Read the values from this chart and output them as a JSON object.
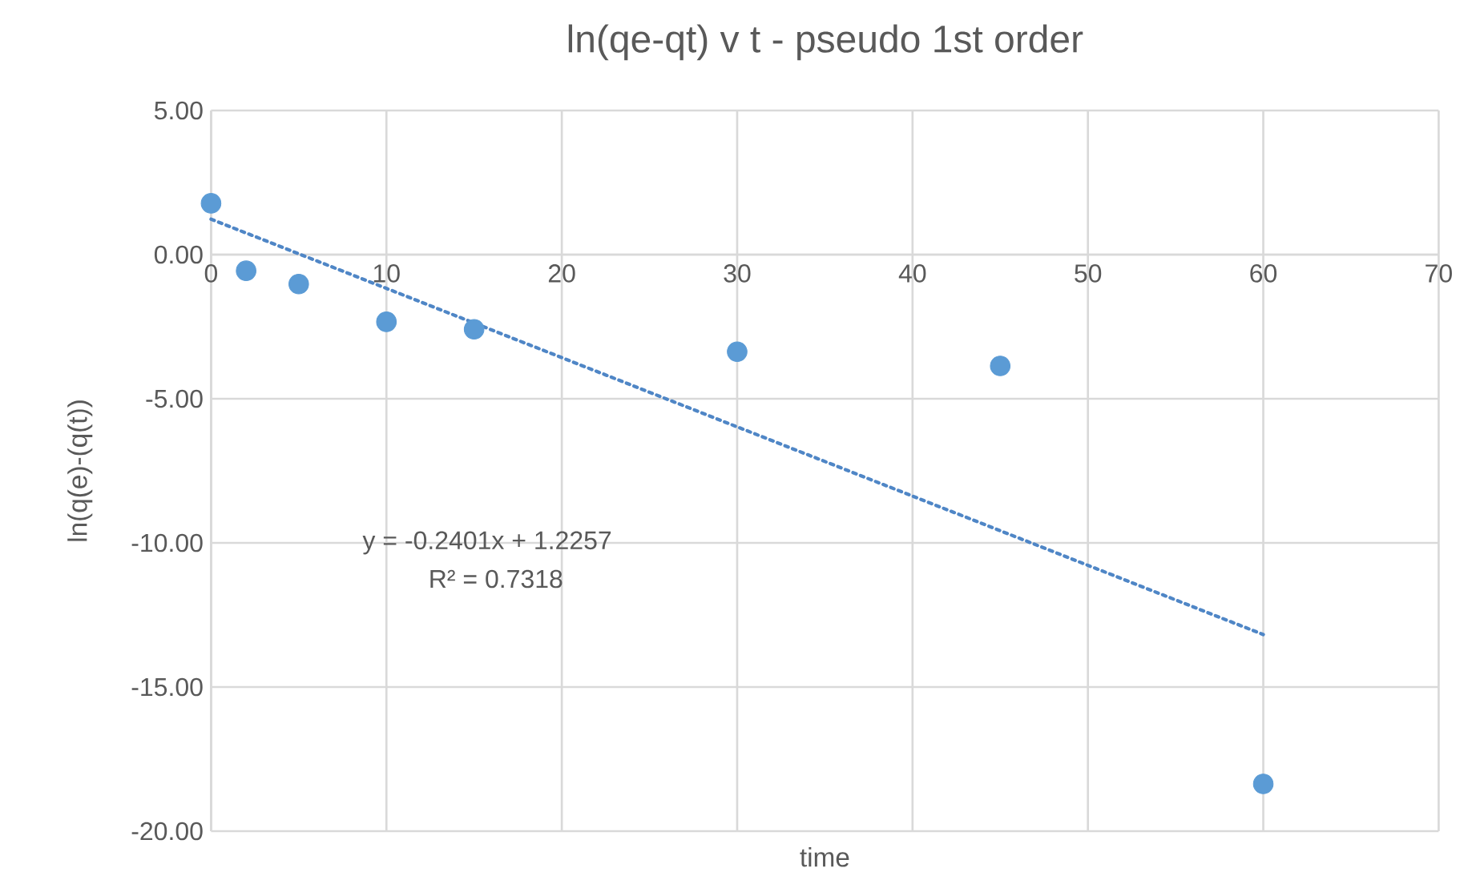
{
  "chart_data": {
    "type": "scatter",
    "title": "ln(qe-qt) v t - pseudo 1st order",
    "xlabel": "time",
    "ylabel": "ln(q(e)-(q(t))",
    "x": [
      0,
      2,
      5,
      10,
      15,
      30,
      45,
      60
    ],
    "series": [
      {
        "type": "scatter",
        "color": "#5b9bd5",
        "marker": "circle",
        "values": [
          1.78,
          -0.56,
          -1.02,
          -2.33,
          -2.59,
          -3.37,
          -3.86,
          -18.36
        ]
      },
      {
        "type": "line",
        "color": "#4f86c6",
        "marker": "none",
        "line_style": "dotted",
        "x": [
          0,
          60
        ],
        "values": [
          1.23,
          -13.18
        ]
      }
    ],
    "annotations": [
      "y = -0.2401x + 1.2257",
      "R² = 0.7318"
    ],
    "xlim": [
      0,
      70
    ],
    "xticks": [
      0,
      10,
      20,
      30,
      40,
      50,
      60,
      70
    ],
    "ylim": [
      -20,
      5
    ],
    "yticks": [
      {
        "value": -20,
        "label": "-20.00"
      },
      {
        "value": -15,
        "label": "-15.00"
      },
      {
        "value": -10,
        "label": "-10.00"
      },
      {
        "value": -5,
        "label": "-5.00"
      },
      {
        "value": 0,
        "label": "0.00"
      },
      {
        "value": 5,
        "label": "5.00"
      }
    ],
    "grid": true
  }
}
